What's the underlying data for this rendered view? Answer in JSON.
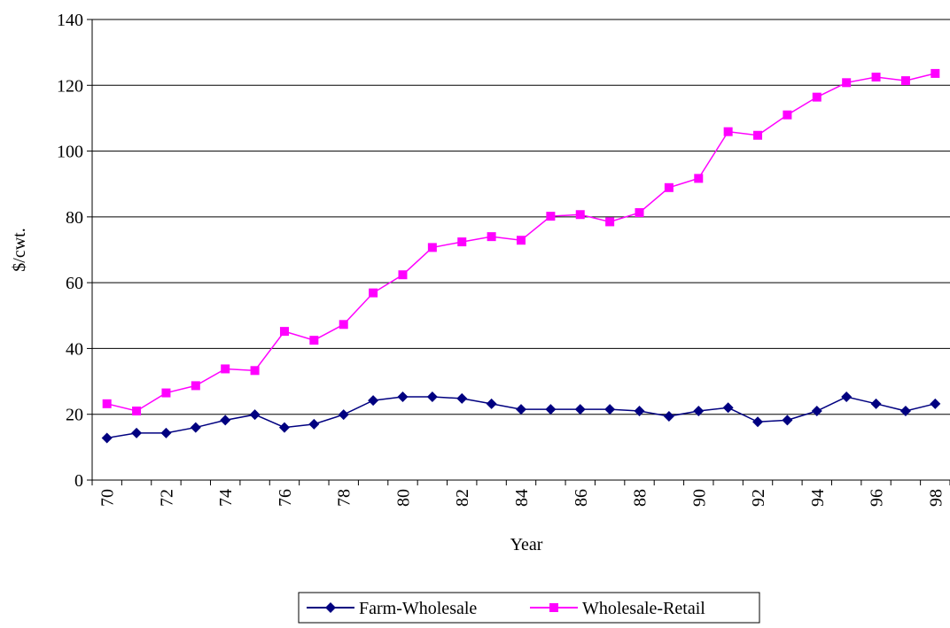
{
  "chart_data": {
    "type": "line",
    "title": "",
    "xlabel": "Year",
    "ylabel": "$/cwt.",
    "ylim": [
      0,
      140
    ],
    "yticks": [
      0,
      20,
      40,
      60,
      80,
      100,
      120,
      140
    ],
    "grid": "horizontal",
    "legend_position": "bottom",
    "x": [
      "70",
      "71",
      "72",
      "73",
      "74",
      "75",
      "76",
      "77",
      "78",
      "79",
      "80",
      "81",
      "82",
      "83",
      "84",
      "85",
      "86",
      "87",
      "88",
      "89",
      "90",
      "91",
      "92",
      "93",
      "94",
      "95",
      "96",
      "97",
      "98"
    ],
    "xtick_labels": [
      "70",
      "72",
      "74",
      "76",
      "78",
      "80",
      "82",
      "84",
      "86",
      "88",
      "90",
      "92",
      "94",
      "96",
      "98"
    ],
    "series": [
      {
        "name": "Farm-Wholesale",
        "color": "#000080",
        "marker": "diamond",
        "values": [
          12.8,
          14.3,
          14.3,
          16.0,
          18.2,
          19.9,
          16.0,
          17.0,
          19.9,
          24.2,
          25.3,
          25.3,
          24.8,
          23.2,
          21.5,
          21.5,
          21.5,
          21.5,
          21.0,
          19.4,
          21.0,
          22.0,
          17.7,
          18.2,
          21.0,
          25.3,
          23.2,
          21.0,
          23.2
        ]
      },
      {
        "name": "Wholesale-Retail",
        "color": "#ff00ff",
        "marker": "square",
        "values": [
          23.2,
          21.0,
          26.5,
          28.7,
          33.8,
          33.3,
          45.2,
          42.5,
          47.3,
          56.9,
          62.4,
          70.7,
          72.4,
          74.0,
          72.9,
          80.2,
          80.7,
          78.5,
          81.3,
          88.9,
          91.7,
          105.9,
          104.8,
          111.0,
          116.4,
          120.8,
          122.5,
          121.4,
          123.6
        ]
      }
    ]
  }
}
